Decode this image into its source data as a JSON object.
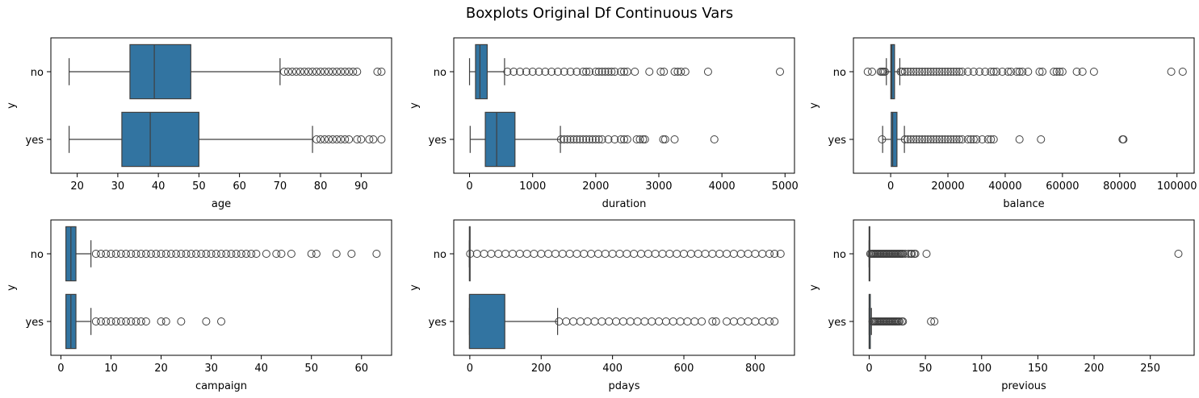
{
  "figure": {
    "title": "Boxplots Original Df Continuous Vars"
  },
  "style": {
    "box_fill": "#3274a1",
    "line_color": "#3f3f3f",
    "flier_edge": "#3f3f3f"
  },
  "chart_data": [
    {
      "type": "boxplot",
      "xlabel": "age",
      "ylabel": "y",
      "categories": [
        "no",
        "yes"
      ],
      "xlim": [
        13.5,
        97.5
      ],
      "xticks": [
        20,
        30,
        40,
        50,
        60,
        70,
        80,
        90
      ],
      "boxes": [
        {
          "category": "no",
          "whisker_low": 18,
          "q1": 33,
          "median": 39,
          "q3": 48,
          "whisker_high": 70,
          "outliers": [
            71,
            72,
            73,
            74,
            75,
            76,
            77,
            78,
            79,
            80,
            81,
            82,
            83,
            84,
            85,
            86,
            87,
            88,
            89,
            94,
            95
          ]
        },
        {
          "category": "yes",
          "whisker_low": 18,
          "q1": 31,
          "median": 38,
          "q3": 50,
          "whisker_high": 78,
          "outliers": [
            79,
            80,
            81,
            82,
            83,
            84,
            85,
            86,
            87,
            89,
            90,
            92,
            93,
            95
          ]
        }
      ]
    },
    {
      "type": "boxplot",
      "xlabel": "duration",
      "ylabel": "y",
      "categories": [
        "no",
        "yes"
      ],
      "xlim": [
        -250,
        5150
      ],
      "xticks": [
        0,
        1000,
        2000,
        3000,
        4000,
        5000
      ],
      "boxes": [
        {
          "category": "no",
          "whisker_low": 0,
          "q1": 95,
          "median": 165,
          "q3": 280,
          "whisker_high": 555,
          "outliers": [
            600,
            700,
            800,
            900,
            1000,
            1100,
            1200,
            1300,
            1400,
            1500,
            1600,
            1700,
            1800,
            1850,
            1900,
            2000,
            2050,
            2100,
            2150,
            2200,
            2250,
            2300,
            2400,
            2450,
            2500,
            2620,
            2850,
            3030,
            3080,
            3250,
            3300,
            3350,
            3420,
            3780,
            4920
          ]
        },
        {
          "category": "yes",
          "whisker_low": 10,
          "q1": 250,
          "median": 430,
          "q3": 720,
          "whisker_high": 1440,
          "outliers": [
            1450,
            1500,
            1550,
            1600,
            1650,
            1700,
            1750,
            1800,
            1850,
            1900,
            1950,
            2000,
            2050,
            2100,
            2200,
            2300,
            2400,
            2450,
            2500,
            2650,
            2700,
            2750,
            2780,
            3070,
            3100,
            3250,
            3880
          ]
        }
      ]
    },
    {
      "type": "boxplot",
      "xlabel": "balance",
      "ylabel": "y",
      "categories": [
        "no",
        "yes"
      ],
      "xlim": [
        -13000,
        106000
      ],
      "xticks": [
        0,
        20000,
        40000,
        60000,
        80000,
        100000
      ],
      "boxes": [
        {
          "category": "no",
          "whisker_low": -1500,
          "q1": 50,
          "median": 420,
          "q3": 1350,
          "whisker_high": 3200,
          "outliers": [
            -8000,
            -6500,
            -3500,
            -3000,
            -2500,
            -2000,
            3500,
            4000,
            5000,
            6000,
            7000,
            8000,
            9000,
            10000,
            11000,
            12000,
            13000,
            14000,
            15000,
            16000,
            17000,
            18000,
            19000,
            20000,
            21000,
            22000,
            23000,
            24000,
            25000,
            27000,
            29000,
            31000,
            33000,
            35000,
            36000,
            37000,
            39000,
            41000,
            42000,
            44000,
            45000,
            46000,
            48000,
            52000,
            53000,
            57000,
            58000,
            59000,
            60000,
            65000,
            67000,
            71000,
            98000,
            102000
          ]
        },
        {
          "category": "yes",
          "whisker_low": -2800,
          "q1": 200,
          "median": 700,
          "q3": 2200,
          "whisker_high": 4800,
          "outliers": [
            -3000,
            5000,
            6000,
            7000,
            8000,
            9000,
            10000,
            11000,
            12000,
            13000,
            14000,
            15000,
            16000,
            17000,
            18000,
            19000,
            20000,
            21000,
            22000,
            23000,
            24000,
            25000,
            27000,
            28000,
            29000,
            30000,
            32000,
            34000,
            35000,
            36000,
            45000,
            52500,
            81000,
            81300
          ]
        }
      ]
    },
    {
      "type": "boxplot",
      "xlabel": "campaign",
      "ylabel": "y",
      "categories": [
        "no",
        "yes"
      ],
      "xlim": [
        -2,
        66
      ],
      "xticks": [
        0,
        10,
        20,
        30,
        40,
        50,
        60
      ],
      "boxes": [
        {
          "category": "no",
          "whisker_low": 1,
          "q1": 1,
          "median": 2,
          "q3": 3,
          "whisker_high": 6,
          "outliers": [
            7,
            8,
            9,
            10,
            11,
            12,
            13,
            14,
            15,
            16,
            17,
            18,
            19,
            20,
            21,
            22,
            23,
            24,
            25,
            26,
            27,
            28,
            29,
            30,
            31,
            32,
            33,
            34,
            35,
            36,
            37,
            38,
            39,
            41,
            43,
            44,
            46,
            50,
            51,
            55,
            58,
            63
          ]
        },
        {
          "category": "yes",
          "whisker_low": 1,
          "q1": 1,
          "median": 2,
          "q3": 3,
          "whisker_high": 6,
          "outliers": [
            7,
            8,
            9,
            10,
            11,
            12,
            13,
            14,
            15,
            16,
            17,
            20,
            21,
            24,
            29,
            32
          ]
        }
      ]
    },
    {
      "type": "boxplot",
      "xlabel": "pdays",
      "ylabel": "y",
      "categories": [
        "no",
        "yes"
      ],
      "xlim": [
        -45,
        910
      ],
      "xticks": [
        0,
        200,
        400,
        600,
        800
      ],
      "boxes": [
        {
          "category": "no",
          "whisker_low": -1,
          "q1": -1,
          "median": -1,
          "q3": -1,
          "whisker_high": -1,
          "outliers": [
            1,
            20,
            40,
            60,
            80,
            100,
            120,
            140,
            160,
            180,
            200,
            220,
            240,
            260,
            280,
            300,
            320,
            340,
            360,
            380,
            400,
            420,
            440,
            460,
            480,
            500,
            520,
            540,
            560,
            580,
            600,
            620,
            640,
            660,
            680,
            700,
            720,
            740,
            760,
            780,
            800,
            820,
            840,
            854,
            871
          ]
        },
        {
          "category": "yes",
          "whisker_low": -1,
          "q1": -1,
          "median": -1,
          "q3": 98,
          "whisker_high": 246,
          "outliers": [
            250,
            270,
            290,
            310,
            330,
            350,
            370,
            390,
            410,
            430,
            450,
            470,
            490,
            510,
            530,
            550,
            570,
            590,
            610,
            630,
            650,
            680,
            690,
            720,
            740,
            760,
            780,
            800,
            820,
            840,
            854
          ]
        }
      ]
    },
    {
      "type": "boxplot",
      "xlabel": "previous",
      "ylabel": "y",
      "categories": [
        "no",
        "yes"
      ],
      "xlim": [
        -14,
        289
      ],
      "xticks": [
        0,
        50,
        100,
        150,
        200,
        250
      ],
      "boxes": [
        {
          "category": "no",
          "whisker_low": 0,
          "q1": 0,
          "median": 0,
          "q3": 0,
          "whisker_high": 0,
          "outliers": [
            1,
            2,
            3,
            4,
            5,
            6,
            7,
            8,
            9,
            10,
            11,
            12,
            13,
            14,
            15,
            16,
            17,
            18,
            19,
            20,
            21,
            22,
            23,
            24,
            25,
            26,
            27,
            28,
            29,
            30,
            32,
            35,
            37,
            38,
            40,
            41,
            51,
            275
          ]
        },
        {
          "category": "yes",
          "whisker_low": 0,
          "q1": 0,
          "median": 0,
          "q3": 1,
          "whisker_high": 2,
          "outliers": [
            3,
            4,
            5,
            6,
            7,
            8,
            9,
            10,
            11,
            12,
            13,
            14,
            15,
            16,
            17,
            18,
            19,
            20,
            21,
            22,
            23,
            24,
            25,
            26,
            27,
            29,
            30,
            55,
            58
          ]
        }
      ]
    }
  ]
}
